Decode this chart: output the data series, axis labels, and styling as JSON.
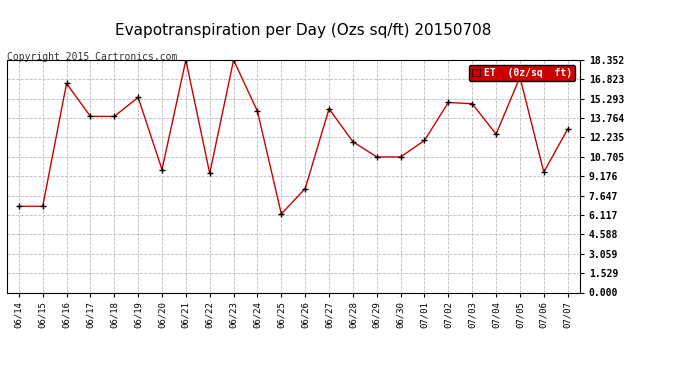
{
  "title": "Evapotranspiration per Day (Ozs sq/ft) 20150708",
  "copyright_text": "Copyright 2015 Cartronics.com",
  "legend_label": "ET  (0z/sq  ft)",
  "x_labels": [
    "06/14",
    "06/15",
    "06/16",
    "06/17",
    "06/18",
    "06/19",
    "06/20",
    "06/21",
    "06/22",
    "06/23",
    "06/24",
    "06/25",
    "06/26",
    "06/27",
    "06/28",
    "06/29",
    "06/30",
    "07/01",
    "07/02",
    "07/03",
    "07/04",
    "07/05",
    "07/06",
    "07/07"
  ],
  "y_values": [
    6.8,
    6.8,
    16.5,
    13.9,
    13.9,
    15.4,
    9.7,
    18.35,
    9.4,
    18.35,
    14.3,
    6.2,
    8.2,
    14.5,
    11.9,
    10.7,
    10.7,
    12.0,
    15.0,
    14.9,
    12.5,
    17.0,
    9.5,
    12.9
  ],
  "y_ticks": [
    0.0,
    1.529,
    3.059,
    4.588,
    6.117,
    7.647,
    9.176,
    10.705,
    12.235,
    13.764,
    15.293,
    16.823,
    18.352
  ],
  "line_color": "#cc0000",
  "marker_color": "#000000",
  "bg_color": "#ffffff",
  "grid_color": "#bbbbbb",
  "title_fontsize": 11,
  "copyright_fontsize": 7,
  "legend_bg": "#cc0000",
  "legend_fg": "#ffffff",
  "ymax": 18.352,
  "ymin": 0.0
}
